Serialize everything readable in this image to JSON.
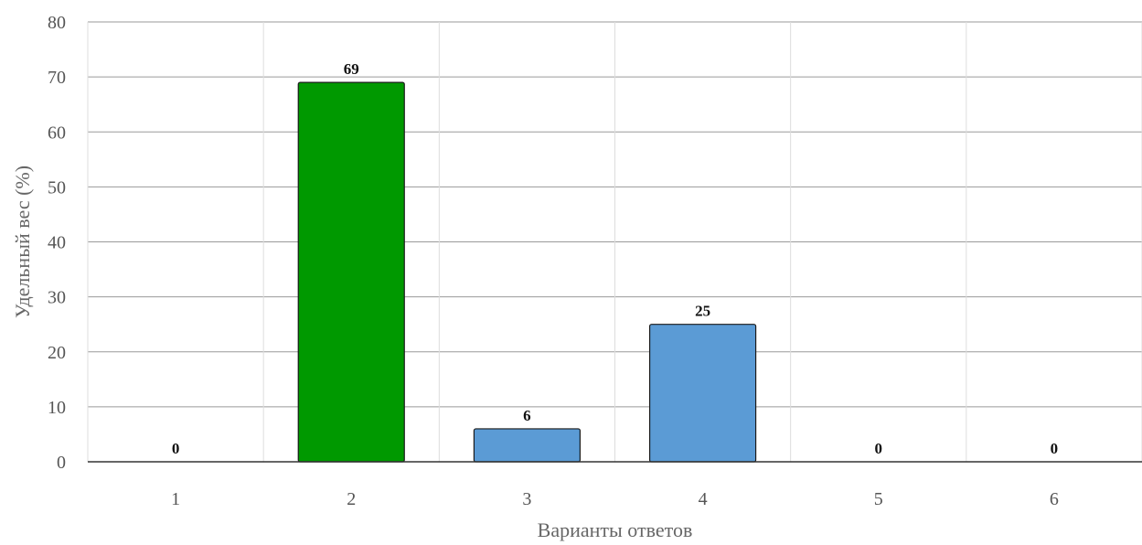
{
  "chart_data": {
    "type": "bar",
    "categories": [
      "1",
      "2",
      "3",
      "4",
      "5",
      "6"
    ],
    "values": [
      0,
      69,
      6,
      25,
      0,
      0
    ],
    "data_labels": [
      "0",
      "69",
      "6",
      "25",
      "0",
      "0"
    ],
    "bar_colors": [
      "#5b9bd5",
      "#009900",
      "#5b9bd5",
      "#5b9bd5",
      "#5b9bd5",
      "#5b9bd5"
    ],
    "title": "",
    "xlabel": "Варианты ответов",
    "ylabel": "Удельный вес (%)",
    "ylim": [
      0,
      80
    ],
    "yticks": [
      "0",
      "10",
      "20",
      "30",
      "40",
      "50",
      "60",
      "70",
      "80"
    ],
    "grid": true,
    "legend": "none"
  }
}
